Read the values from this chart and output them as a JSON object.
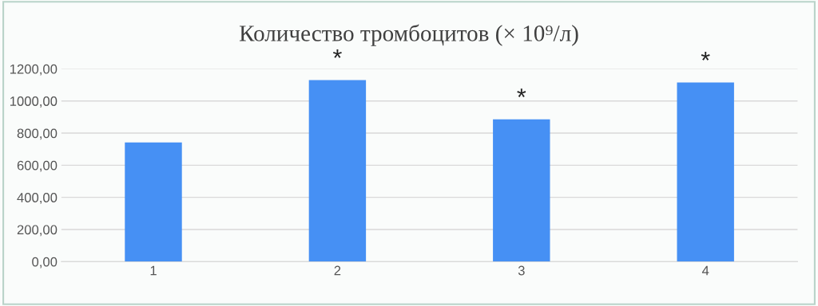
{
  "chart_data": {
    "type": "bar",
    "title": "Количество тромбоцитов (× 10⁹/л)",
    "categories": [
      "1",
      "2",
      "3",
      "4"
    ],
    "values": [
      742,
      1130,
      886,
      1115
    ],
    "color": "#4690f4",
    "ylim": [
      0,
      1200
    ],
    "yticks": [
      {
        "value": 0,
        "label": "0,00"
      },
      {
        "value": 200,
        "label": "200,00"
      },
      {
        "value": 400,
        "label": "400,00"
      },
      {
        "value": 600,
        "label": "600,00"
      },
      {
        "value": 800,
        "label": "800,00"
      },
      {
        "value": 1000,
        "label": "1000,00"
      },
      {
        "value": 1200,
        "label": "1200,00"
      }
    ],
    "grid": "y",
    "annotations": [
      {
        "text": "*",
        "x": "2",
        "y": 1130
      },
      {
        "text": "*",
        "x": "3",
        "y": 886
      },
      {
        "text": "*",
        "x": "4",
        "y": 1115
      }
    ]
  }
}
